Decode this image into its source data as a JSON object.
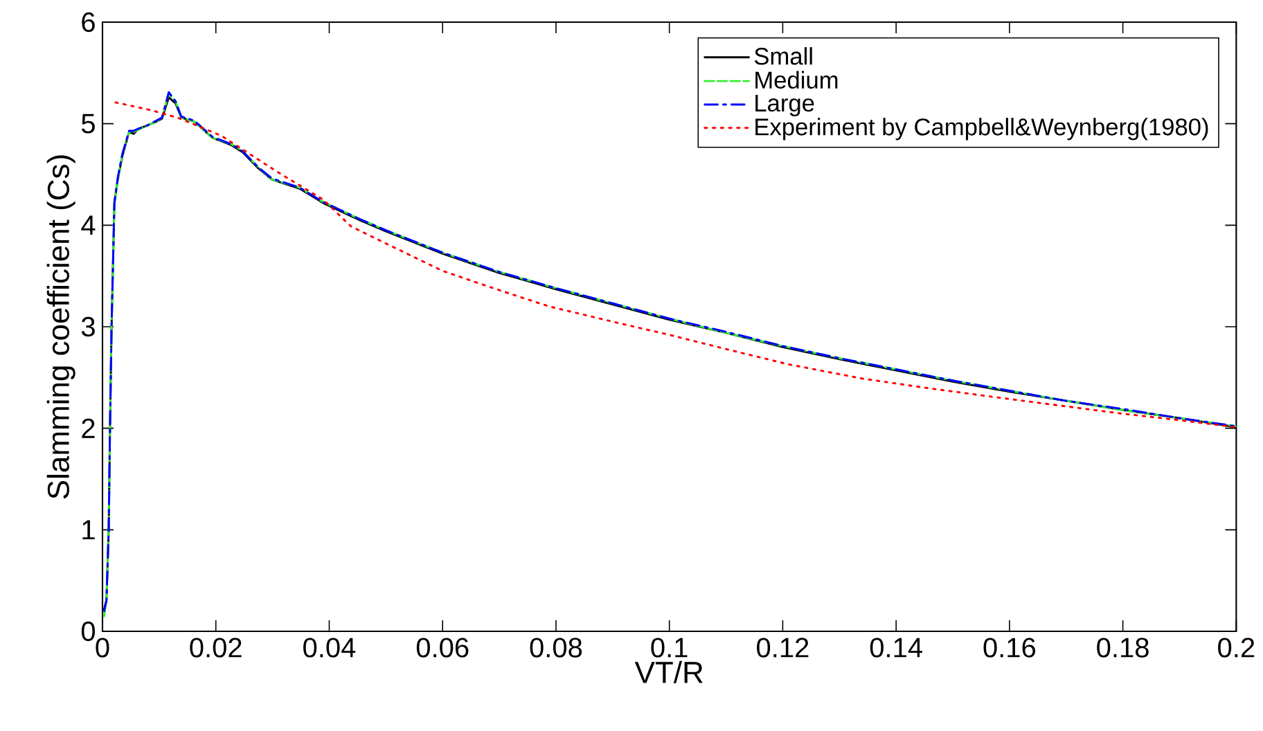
{
  "chart_data": {
    "type": "line",
    "xlabel": "VT/R",
    "ylabel": "Slamming coefficient (Cs)",
    "xlim": [
      0,
      0.2
    ],
    "ylim": [
      0,
      6
    ],
    "xticks": [
      0,
      0.02,
      0.04,
      0.06,
      0.08,
      0.1,
      0.12,
      0.14,
      0.16,
      0.18,
      0.2
    ],
    "yticks": [
      0,
      1,
      2,
      3,
      4,
      5,
      6
    ],
    "legend": "top right",
    "grid": false,
    "marker": "none",
    "series": [
      {
        "name": "Small",
        "color": "#000000",
        "line_style": "solid",
        "x": [
          0.0003,
          0.0007,
          0.0011,
          0.0013,
          0.0016,
          0.0019,
          0.0021,
          0.0027,
          0.0035,
          0.0047,
          0.0055,
          0.0063,
          0.0078,
          0.0095,
          0.0105,
          0.0117,
          0.0129,
          0.0139,
          0.0162,
          0.0194,
          0.0227,
          0.0247,
          0.0275,
          0.0299,
          0.0348,
          0.0389,
          0.045,
          0.05,
          0.06,
          0.07,
          0.08,
          0.09,
          0.1,
          0.11,
          0.12,
          0.13,
          0.14,
          0.15,
          0.16,
          0.17,
          0.18,
          0.19,
          0.2
        ],
        "values": [
          0.22,
          0.31,
          1.0,
          1.9,
          3.0,
          3.72,
          4.22,
          4.45,
          4.68,
          4.92,
          4.9,
          4.95,
          4.98,
          5.02,
          5.05,
          5.26,
          5.2,
          5.06,
          5.02,
          4.86,
          4.79,
          4.72,
          4.56,
          4.45,
          4.36,
          4.22,
          4.06,
          3.94,
          3.72,
          3.53,
          3.37,
          3.22,
          3.07,
          2.94,
          2.8,
          2.68,
          2.57,
          2.46,
          2.36,
          2.27,
          2.18,
          2.1,
          2.01
        ]
      },
      {
        "name": "Medium",
        "color": "#33ee33",
        "line_style": "dashed",
        "x": [
          0.0003,
          0.0007,
          0.0011,
          0.0013,
          0.0016,
          0.0019,
          0.0021,
          0.0027,
          0.0035,
          0.0047,
          0.0055,
          0.0063,
          0.0078,
          0.0095,
          0.0105,
          0.0117,
          0.0129,
          0.0139,
          0.0162,
          0.0194,
          0.0227,
          0.0247,
          0.0275,
          0.0299,
          0.0348,
          0.0389,
          0.045,
          0.05,
          0.06,
          0.07,
          0.08,
          0.09,
          0.1,
          0.11,
          0.12,
          0.13,
          0.14,
          0.15,
          0.16,
          0.17,
          0.18,
          0.19,
          0.2
        ],
        "values": [
          0.15,
          0.31,
          1.0,
          1.9,
          3.0,
          3.7,
          4.2,
          4.45,
          4.7,
          4.92,
          4.92,
          4.94,
          4.98,
          5.02,
          5.06,
          5.3,
          5.22,
          5.06,
          5.02,
          4.86,
          4.8,
          4.73,
          4.57,
          4.45,
          4.37,
          4.23,
          4.07,
          3.95,
          3.73,
          3.54,
          3.38,
          3.23,
          3.08,
          2.94,
          2.81,
          2.69,
          2.58,
          2.47,
          2.37,
          2.27,
          2.18,
          2.1,
          2.02
        ]
      },
      {
        "name": "Large",
        "color": "#0000ff",
        "line_style": "dashdot",
        "x": [
          0.0003,
          0.0007,
          0.0011,
          0.0013,
          0.0016,
          0.0019,
          0.0021,
          0.0027,
          0.0035,
          0.0047,
          0.0055,
          0.0063,
          0.0078,
          0.0095,
          0.0105,
          0.0117,
          0.0129,
          0.0139,
          0.0162,
          0.0194,
          0.0227,
          0.0247,
          0.0275,
          0.0299,
          0.0348,
          0.0389,
          0.045,
          0.05,
          0.06,
          0.07,
          0.08,
          0.09,
          0.1,
          0.11,
          0.12,
          0.13,
          0.14,
          0.15,
          0.16,
          0.17,
          0.18,
          0.19,
          0.2
        ],
        "values": [
          0.2,
          0.3,
          1.0,
          1.9,
          3.0,
          3.72,
          4.22,
          4.47,
          4.7,
          4.93,
          4.93,
          4.95,
          4.98,
          5.03,
          5.06,
          5.31,
          5.22,
          5.07,
          5.03,
          4.87,
          4.8,
          4.73,
          4.57,
          4.46,
          4.37,
          4.23,
          4.07,
          3.95,
          3.73,
          3.54,
          3.38,
          3.23,
          3.08,
          2.95,
          2.81,
          2.69,
          2.58,
          2.47,
          2.37,
          2.27,
          2.19,
          2.1,
          2.02
        ]
      },
      {
        "name": "Experiment by Campbell&Weynberg(1980)",
        "color": "#ff0000",
        "line_style": "dotted",
        "x": [
          0.0023,
          0.0088,
          0.0137,
          0.021,
          0.026,
          0.031,
          0.039,
          0.0438,
          0.05,
          0.06,
          0.07,
          0.0788,
          0.09,
          0.1,
          0.11,
          0.121,
          0.134,
          0.145,
          0.157,
          0.168,
          0.179,
          0.19,
          0.2
        ],
        "values": [
          5.21,
          5.13,
          5.05,
          4.88,
          4.7,
          4.52,
          4.25,
          3.99,
          3.82,
          3.55,
          3.36,
          3.2,
          3.05,
          2.92,
          2.78,
          2.63,
          2.49,
          2.4,
          2.31,
          2.23,
          2.15,
          2.08,
          2.01
        ]
      }
    ]
  }
}
